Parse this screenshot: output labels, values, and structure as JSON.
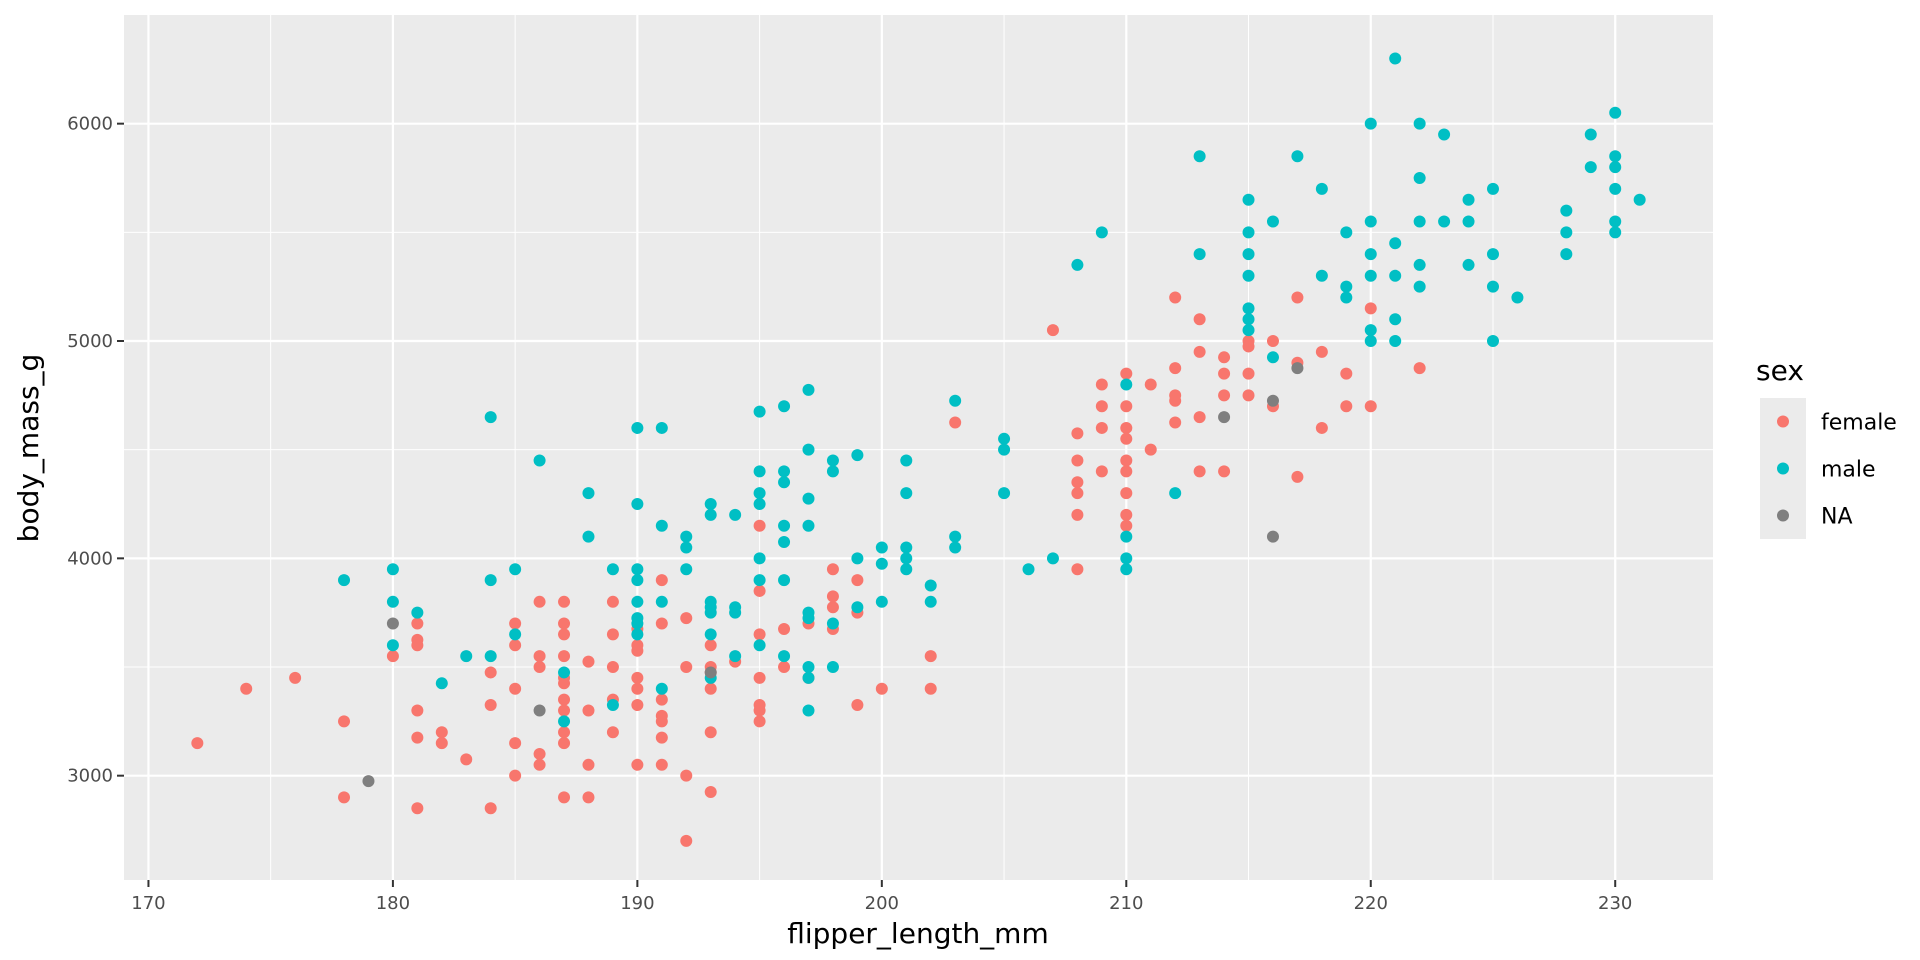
{
  "chart_data": {
    "type": "scatter",
    "xlabel": "flipper_length_mm",
    "ylabel": "body_mass_g",
    "xlim": [
      169,
      234
    ],
    "ylim": [
      2520,
      6500
    ],
    "x_ticks": [
      170,
      180,
      190,
      200,
      210,
      220,
      230
    ],
    "y_ticks": [
      3000,
      4000,
      5000,
      6000
    ],
    "grid": true,
    "legend": {
      "title": "sex",
      "position": "right"
    },
    "series": [
      {
        "name": "female",
        "color": "#F8766D",
        "points": [
          [
            172,
            3150
          ],
          [
            174,
            3400
          ],
          [
            176,
            3450
          ],
          [
            178,
            3250
          ],
          [
            178,
            2900
          ],
          [
            180,
            3550
          ],
          [
            181,
            3700
          ],
          [
            181,
            3625
          ],
          [
            181,
            3600
          ],
          [
            181,
            3300
          ],
          [
            181,
            3175
          ],
          [
            181,
            2850
          ],
          [
            182,
            3200
          ],
          [
            182,
            3150
          ],
          [
            183,
            3075
          ],
          [
            184,
            3475
          ],
          [
            184,
            3325
          ],
          [
            184,
            2850
          ],
          [
            185,
            3700
          ],
          [
            185,
            3600
          ],
          [
            185,
            3400
          ],
          [
            185,
            3150
          ],
          [
            185,
            3000
          ],
          [
            186,
            3800
          ],
          [
            186,
            3550
          ],
          [
            186,
            3500
          ],
          [
            186,
            3100
          ],
          [
            186,
            3050
          ],
          [
            187,
            3800
          ],
          [
            187,
            3700
          ],
          [
            187,
            3650
          ],
          [
            187,
            3550
          ],
          [
            187,
            3450
          ],
          [
            187,
            3425
          ],
          [
            187,
            3350
          ],
          [
            187,
            3300
          ],
          [
            187,
            3200
          ],
          [
            187,
            3150
          ],
          [
            187,
            2900
          ],
          [
            188,
            3525
          ],
          [
            188,
            3300
          ],
          [
            188,
            3050
          ],
          [
            188,
            2900
          ],
          [
            189,
            3800
          ],
          [
            189,
            3650
          ],
          [
            189,
            3500
          ],
          [
            189,
            3350
          ],
          [
            189,
            3200
          ],
          [
            190,
            3675
          ],
          [
            190,
            3600
          ],
          [
            190,
            3575
          ],
          [
            190,
            3450
          ],
          [
            190,
            3400
          ],
          [
            190,
            3325
          ],
          [
            190,
            3050
          ],
          [
            191,
            3900
          ],
          [
            191,
            3700
          ],
          [
            191,
            3350
          ],
          [
            191,
            3275
          ],
          [
            191,
            3250
          ],
          [
            191,
            3175
          ],
          [
            191,
            3050
          ],
          [
            192,
            3725
          ],
          [
            192,
            3500
          ],
          [
            192,
            3000
          ],
          [
            192,
            2700
          ],
          [
            193,
            3600
          ],
          [
            193,
            3500
          ],
          [
            193,
            3475
          ],
          [
            193,
            3400
          ],
          [
            193,
            3200
          ],
          [
            193,
            2925
          ],
          [
            194,
            3525
          ],
          [
            195,
            4150
          ],
          [
            195,
            3850
          ],
          [
            195,
            3650
          ],
          [
            195,
            3450
          ],
          [
            195,
            3325
          ],
          [
            195,
            3300
          ],
          [
            195,
            3250
          ],
          [
            196,
            3675
          ],
          [
            196,
            3500
          ],
          [
            197,
            3700
          ],
          [
            197,
            3450
          ],
          [
            198,
            3950
          ],
          [
            198,
            3825
          ],
          [
            198,
            3775
          ],
          [
            198,
            3675
          ],
          [
            199,
            3900
          ],
          [
            199,
            3750
          ],
          [
            199,
            3325
          ],
          [
            200,
            3400
          ],
          [
            202,
            3550
          ],
          [
            202,
            3400
          ],
          [
            203,
            4625
          ],
          [
            207,
            5050
          ],
          [
            208,
            4575
          ],
          [
            208,
            4450
          ],
          [
            208,
            4350
          ],
          [
            208,
            4300
          ],
          [
            208,
            4200
          ],
          [
            208,
            3950
          ],
          [
            209,
            4800
          ],
          [
            209,
            4700
          ],
          [
            209,
            4600
          ],
          [
            209,
            4400
          ],
          [
            210,
            4850
          ],
          [
            210,
            4700
          ],
          [
            210,
            4600
          ],
          [
            210,
            4550
          ],
          [
            210,
            4450
          ],
          [
            210,
            4400
          ],
          [
            210,
            4300
          ],
          [
            210,
            4200
          ],
          [
            210,
            4150
          ],
          [
            211,
            4800
          ],
          [
            211,
            4500
          ],
          [
            212,
            5200
          ],
          [
            212,
            4875
          ],
          [
            212,
            4750
          ],
          [
            212,
            4725
          ],
          [
            212,
            4625
          ],
          [
            213,
            5100
          ],
          [
            213,
            4950
          ],
          [
            213,
            4650
          ],
          [
            213,
            4400
          ],
          [
            214,
            4925
          ],
          [
            214,
            4850
          ],
          [
            214,
            4750
          ],
          [
            214,
            4400
          ],
          [
            215,
            5000
          ],
          [
            215,
            4975
          ],
          [
            215,
            4850
          ],
          [
            215,
            4750
          ],
          [
            216,
            5000
          ],
          [
            216,
            4700
          ],
          [
            217,
            5200
          ],
          [
            217,
            4900
          ],
          [
            217,
            4375
          ],
          [
            218,
            4950
          ],
          [
            218,
            4600
          ],
          [
            219,
            4850
          ],
          [
            219,
            4700
          ],
          [
            220,
            5150
          ],
          [
            220,
            4700
          ],
          [
            222,
            4875
          ]
        ]
      },
      {
        "name": "male",
        "color": "#00BFC4",
        "points": [
          [
            178,
            3900
          ],
          [
            180,
            3950
          ],
          [
            180,
            3800
          ],
          [
            180,
            3600
          ],
          [
            181,
            3750
          ],
          [
            182,
            3425
          ],
          [
            183,
            3550
          ],
          [
            184,
            4650
          ],
          [
            184,
            3900
          ],
          [
            184,
            3550
          ],
          [
            185,
            3950
          ],
          [
            185,
            3650
          ],
          [
            186,
            4450
          ],
          [
            187,
            3475
          ],
          [
            187,
            3250
          ],
          [
            188,
            4300
          ],
          [
            188,
            4100
          ],
          [
            189,
            3950
          ],
          [
            189,
            3325
          ],
          [
            190,
            4600
          ],
          [
            190,
            4250
          ],
          [
            190,
            3950
          ],
          [
            190,
            3900
          ],
          [
            190,
            3800
          ],
          [
            190,
            3725
          ],
          [
            190,
            3700
          ],
          [
            190,
            3650
          ],
          [
            191,
            4600
          ],
          [
            191,
            4150
          ],
          [
            191,
            3800
          ],
          [
            191,
            3400
          ],
          [
            192,
            4100
          ],
          [
            192,
            4050
          ],
          [
            192,
            3950
          ],
          [
            193,
            4250
          ],
          [
            193,
            4200
          ],
          [
            193,
            3800
          ],
          [
            193,
            3775
          ],
          [
            193,
            3750
          ],
          [
            193,
            3650
          ],
          [
            193,
            3450
          ],
          [
            194,
            4200
          ],
          [
            194,
            3775
          ],
          [
            194,
            3750
          ],
          [
            194,
            3550
          ],
          [
            195,
            4675
          ],
          [
            195,
            4400
          ],
          [
            195,
            4300
          ],
          [
            195,
            4250
          ],
          [
            195,
            4000
          ],
          [
            195,
            3900
          ],
          [
            195,
            3600
          ],
          [
            196,
            4700
          ],
          [
            196,
            4400
          ],
          [
            196,
            4350
          ],
          [
            196,
            4150
          ],
          [
            196,
            4075
          ],
          [
            196,
            3900
          ],
          [
            196,
            3550
          ],
          [
            197,
            4775
          ],
          [
            197,
            4500
          ],
          [
            197,
            4275
          ],
          [
            197,
            4150
          ],
          [
            197,
            3750
          ],
          [
            197,
            3725
          ],
          [
            197,
            3500
          ],
          [
            197,
            3450
          ],
          [
            197,
            3300
          ],
          [
            198,
            4450
          ],
          [
            198,
            4400
          ],
          [
            198,
            3700
          ],
          [
            198,
            3500
          ],
          [
            199,
            4475
          ],
          [
            199,
            4000
          ],
          [
            199,
            3775
          ],
          [
            200,
            4050
          ],
          [
            200,
            3975
          ],
          [
            200,
            3800
          ],
          [
            201,
            4450
          ],
          [
            201,
            4300
          ],
          [
            201,
            4050
          ],
          [
            201,
            4000
          ],
          [
            201,
            3950
          ],
          [
            202,
            3875
          ],
          [
            202,
            3800
          ],
          [
            203,
            4725
          ],
          [
            203,
            4100
          ],
          [
            203,
            4050
          ],
          [
            205,
            4550
          ],
          [
            205,
            4500
          ],
          [
            205,
            4300
          ],
          [
            206,
            3950
          ],
          [
            207,
            4000
          ],
          [
            208,
            5350
          ],
          [
            209,
            5500
          ],
          [
            210,
            4800
          ],
          [
            210,
            4100
          ],
          [
            210,
            4000
          ],
          [
            210,
            3950
          ],
          [
            212,
            4300
          ],
          [
            213,
            5850
          ],
          [
            213,
            5400
          ],
          [
            215,
            5650
          ],
          [
            215,
            5500
          ],
          [
            215,
            5400
          ],
          [
            215,
            5300
          ],
          [
            215,
            5150
          ],
          [
            215,
            5100
          ],
          [
            215,
            5050
          ],
          [
            216,
            5550
          ],
          [
            216,
            4925
          ],
          [
            217,
            5850
          ],
          [
            218,
            5700
          ],
          [
            218,
            5300
          ],
          [
            219,
            5500
          ],
          [
            219,
            5250
          ],
          [
            219,
            5200
          ],
          [
            220,
            6000
          ],
          [
            220,
            5550
          ],
          [
            220,
            5400
          ],
          [
            220,
            5300
          ],
          [
            220,
            5050
          ],
          [
            220,
            5000
          ],
          [
            221,
            6300
          ],
          [
            221,
            5450
          ],
          [
            221,
            5300
          ],
          [
            221,
            5100
          ],
          [
            221,
            5000
          ],
          [
            222,
            6000
          ],
          [
            222,
            5750
          ],
          [
            222,
            5550
          ],
          [
            222,
            5350
          ],
          [
            222,
            5250
          ],
          [
            223,
            5950
          ],
          [
            223,
            5550
          ],
          [
            224,
            5650
          ],
          [
            224,
            5550
          ],
          [
            224,
            5350
          ],
          [
            225,
            5700
          ],
          [
            225,
            5400
          ],
          [
            225,
            5250
          ],
          [
            225,
            5000
          ],
          [
            226,
            5200
          ],
          [
            228,
            5600
          ],
          [
            228,
            5500
          ],
          [
            228,
            5400
          ],
          [
            229,
            5950
          ],
          [
            229,
            5800
          ],
          [
            230,
            6050
          ],
          [
            230,
            5850
          ],
          [
            230,
            5800
          ],
          [
            230,
            5700
          ],
          [
            230,
            5550
          ],
          [
            230,
            5500
          ],
          [
            231,
            5650
          ]
        ]
      },
      {
        "name": "NA",
        "color": "#7F7F7F",
        "points": [
          [
            179,
            2975
          ],
          [
            180,
            3700
          ],
          [
            186,
            3300
          ],
          [
            193,
            3475
          ],
          [
            214,
            4650
          ],
          [
            216,
            4725
          ],
          [
            216,
            4100
          ],
          [
            217,
            4875
          ]
        ]
      }
    ]
  }
}
